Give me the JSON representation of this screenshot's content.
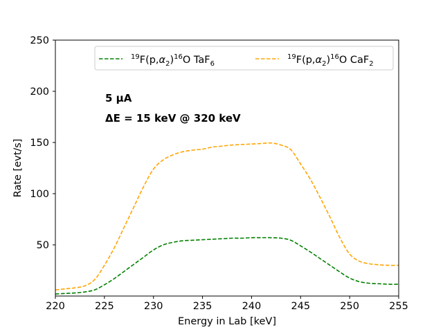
{
  "chart_data": {
    "type": "line",
    "xlabel": "Energy in Lab [keV]",
    "ylabel": "Rate [evt/s]",
    "xlim": [
      220,
      255
    ],
    "ylim": [
      0,
      250
    ],
    "xticks": [
      220,
      225,
      230,
      235,
      240,
      245,
      250,
      255
    ],
    "yticks": [
      50,
      100,
      150,
      200,
      250
    ],
    "grid": false,
    "legend_position": "top-right",
    "annotations": [
      "5 μA",
      "ΔE = 15 keV @ 320 keV"
    ],
    "series": [
      {
        "name": "19F(p,α2)16O TaF6",
        "name_parts": {
          "pre": "19",
          "main1": "F(p,",
          "alpha": "α",
          "sub1": "2",
          "post1": ")",
          "pre2": "16",
          "main2": "O TaF",
          "sub2": "6"
        },
        "color": "#008000",
        "linestyle": "dashed",
        "x": [
          220,
          221,
          222,
          223,
          224,
          225,
          226,
          227,
          228,
          229,
          230,
          231,
          232,
          233,
          234,
          235,
          236,
          237,
          238,
          239,
          240,
          241,
          242,
          243,
          244,
          245,
          246,
          247,
          248,
          249,
          250,
          251,
          252,
          253,
          254,
          255
        ],
        "y": [
          2,
          2.5,
          3,
          4,
          6,
          11,
          17,
          24,
          31,
          38,
          45,
          50,
          52.5,
          54,
          54.5,
          55,
          55.5,
          56,
          56.5,
          56.5,
          57,
          57,
          57,
          56.5,
          54.5,
          49,
          43,
          36.5,
          30,
          23.5,
          17.5,
          14,
          12.5,
          12,
          11.5,
          11.5
        ]
      },
      {
        "name": "19F(p,α2)16O CaF2",
        "name_parts": {
          "pre": "19",
          "main1": "F(p,",
          "alpha": "α",
          "sub1": "2",
          "post1": ")",
          "pre2": "16",
          "main2": "O CaF",
          "sub2": "2"
        },
        "color": "#ffa500",
        "linestyle": "dashed",
        "x": [
          220,
          221,
          222,
          223,
          224,
          225,
          226,
          227,
          228,
          229,
          230,
          231,
          232,
          233,
          234,
          235,
          236,
          237,
          238,
          239,
          240,
          241,
          242,
          243,
          244,
          245,
          246,
          247,
          248,
          249,
          250,
          251,
          252,
          253,
          254,
          255
        ],
        "y": [
          6,
          7,
          8,
          10,
          16,
          30,
          47,
          67,
          87,
          107,
          124,
          133,
          138,
          141,
          142.5,
          143.5,
          145.5,
          146.5,
          147.5,
          148,
          148.5,
          149,
          149.5,
          147.5,
          143,
          129,
          114,
          96,
          77,
          57,
          41,
          34,
          31.5,
          30.5,
          30,
          30
        ]
      }
    ]
  }
}
